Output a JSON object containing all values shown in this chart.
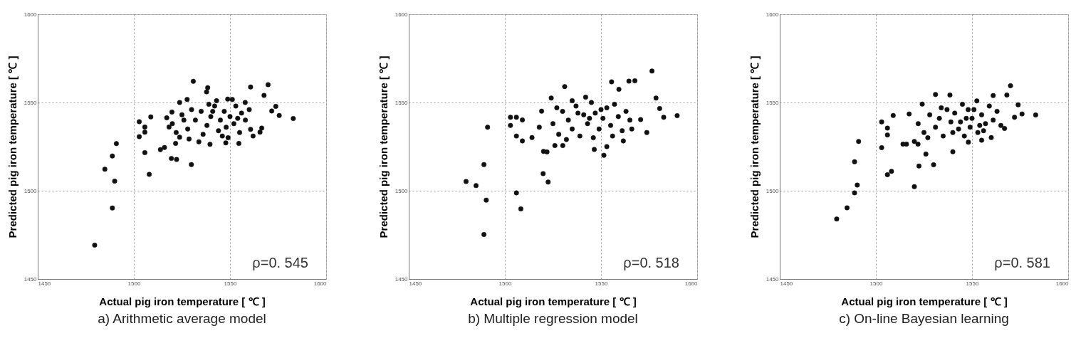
{
  "chart_data": [
    {
      "type": "scatter",
      "title": "a) Arithmetic average model",
      "xlabel": "Actual pig iron temperature [ ℃ ]",
      "ylabel": "Predicted pig iron temperature [ ℃ ]",
      "annotations": [
        "ρ=0. 545"
      ],
      "xlim": [
        1450,
        1600
      ],
      "ylim": [
        1450,
        1600
      ],
      "xticks": [
        1450,
        1500,
        1550,
        1600
      ],
      "yticks": [
        1450,
        1500,
        1550,
        1600
      ],
      "grid": true,
      "marker": "circle",
      "series": [
        {
          "color": "#111111",
          "x": [
            1479.6,
            1488.8,
            1490,
            1488.8,
            1484.9,
            1490.9,
            1502.8,
            1502.8,
            1505.7,
            1505.7,
            1505.7,
            1508,
            1508.8,
            1513.8,
            1515.9,
            1519.5,
            1522.2,
            1529.9,
            1530.9,
            1527.7,
            1523.8,
            1517.1,
            1519.8,
            1518.3,
            1521.7,
            1523.8,
            1528.7,
            1533.8,
            1538.4,
            1537.8,
            1539.6,
            1547.8,
            1554.6,
            1560.7,
            1569.8,
            1567.7,
            1573.8,
            1571.7,
            1575.6,
            1582.9,
            1565.6,
            1566.5,
            1560.7,
            1557.9,
            1548.8,
            1551.2,
            1520,
            1525,
            1528,
            1532,
            1535,
            1538,
            1540,
            1542,
            1544,
            1545,
            1547,
            1548,
            1550,
            1552,
            1553,
            1555,
            1556,
            1558,
            1560,
            1562,
            1546,
            1543,
            1536,
            1530,
            1526,
            1522,
            1541,
            1549,
            1554,
            1539
          ],
          "values": [
            1469.2,
            1490.2,
            1505.4,
            1519.7,
            1512.2,
            1526.7,
            1539.1,
            1530.6,
            1536.1,
            1533.2,
            1521.6,
            1509.3,
            1541.8,
            1523.3,
            1524.5,
            1518.3,
            1517.7,
            1514.8,
            1562,
            1551.7,
            1550,
            1541.3,
            1544.6,
            1536.1,
            1526.8,
            1530.3,
            1529.3,
            1527.7,
            1558.4,
            1556,
            1526.3,
            1527.1,
            1526.8,
            1558.8,
            1560.1,
            1554,
            1547.8,
            1545.2,
            1542.6,
            1540.9,
            1533.2,
            1535.5,
            1534.8,
            1550,
            1551.9,
            1551.7,
            1538,
            1543,
            1535,
            1540,
            1545,
            1537,
            1542,
            1548,
            1534,
            1540,
            1545,
            1536,
            1542,
            1538,
            1548,
            1533,
            1544,
            1540,
            1546,
            1531,
            1531,
            1551,
            1532,
            1546,
            1540,
            1533,
            1545,
            1530,
            1541,
            1549
          ]
        }
      ]
    },
    {
      "type": "scatter",
      "title": "b) Multiple regression model",
      "xlabel": "Actual pig iron temperature [ ℃ ]",
      "ylabel": "Predicted pig iron temperature [ ℃ ]",
      "annotations": [
        "ρ=0. 518"
      ],
      "xlim": [
        1450,
        1600
      ],
      "ylim": [
        1450,
        1600
      ],
      "xticks": [
        1450,
        1500,
        1550,
        1600
      ],
      "yticks": [
        1450,
        1500,
        1550,
        1600
      ],
      "grid": true,
      "marker": "circle",
      "series": [
        {
          "color": "#111111",
          "x": [
            1489.1,
            1479.8,
            1485,
            1490.3,
            1489.1,
            1491,
            1506,
            1508.3,
            1519.9,
            1522.5,
            1502.9,
            1502.9,
            1506,
            1509.1,
            1506,
            1509.1,
            1514.1,
            1520.1,
            1521.9,
            1526,
            1530.1,
            1531.1,
            1524.1,
            1546.5,
            1551.5,
            1553,
            1555.5,
            1564.5,
            1567.6,
            1576.5,
            1578.6,
            1580.5,
            1582.6,
            1589.6,
            1559.3,
            1561.6,
            1573.8,
            1570.6,
            1519.1,
            1517.9,
            1525,
            1528,
            1530,
            1533,
            1535,
            1537,
            1539,
            1541,
            1543,
            1545,
            1547,
            1549,
            1551,
            1553,
            1555,
            1557,
            1559,
            1561,
            1563,
            1565,
            1546,
            1542,
            1538,
            1532,
            1527,
            1550,
            1556,
            1566,
            1535,
            1544
          ],
          "values": [
            1475.2,
            1505.2,
            1502.9,
            1494.7,
            1514.8,
            1536,
            1498.8,
            1489.7,
            1509.7,
            1504.9,
            1537,
            1541.6,
            1541.6,
            1540.1,
            1531,
            1528.2,
            1530.1,
            1522.3,
            1522,
            1525.6,
            1525.6,
            1559,
            1552.5,
            1523.4,
            1520.1,
            1525,
            1561.7,
            1562.1,
            1562.3,
            1567.8,
            1552.5,
            1546.6,
            1541.6,
            1542.5,
            1557.5,
            1528.2,
            1533,
            1540.3,
            1545.1,
            1536,
            1538,
            1532,
            1545,
            1540,
            1535,
            1548,
            1531,
            1543,
            1538,
            1550,
            1544,
            1535,
            1541,
            1547,
            1537,
            1549,
            1542,
            1534,
            1545,
            1540,
            1530,
            1553,
            1544,
            1529,
            1547,
            1546,
            1531,
            1535,
            1551,
            1541
          ]
        }
      ]
    },
    {
      "type": "scatter",
      "title": "c) On-line Bayesian learning",
      "xlabel": "Actual pig iron temperature [ ℃ ]",
      "ylabel": "Predicted pig iron temperature [ ℃ ]",
      "annotations": [
        "ρ=0. 581"
      ],
      "xlim": [
        1450,
        1600
      ],
      "ylim": [
        1450,
        1600
      ],
      "xticks": [
        1450,
        1500,
        1550,
        1600
      ],
      "yticks": [
        1450,
        1500,
        1550,
        1600
      ],
      "grid": true,
      "marker": "circle",
      "series": [
        {
          "color": "#111111",
          "x": [
            1479.6,
            1485,
            1488.9,
            1490.3,
            1488.9,
            1491,
            1503,
            1503,
            1506,
            1506,
            1506,
            1508.1,
            1509,
            1520,
            1522.4,
            1526,
            1530,
            1540,
            1514.1,
            1515.9,
            1520,
            1521.9,
            1517.3,
            1524.1,
            1531,
            1538.5,
            1570,
            1568.1,
            1574,
            1576,
            1583.1,
            1572.1,
            1566.9,
            1560,
            1555,
            1548.1,
            1561,
            1552.5,
            1522,
            1525,
            1528,
            1531,
            1533,
            1535,
            1537,
            1539,
            1541,
            1543,
            1545,
            1547,
            1549,
            1551,
            1553,
            1555,
            1557,
            1559,
            1561,
            1563,
            1546,
            1544,
            1540,
            1534,
            1527,
            1554,
            1550,
            1548,
            1565,
            1556
          ],
          "values": [
            1484,
            1490.3,
            1498.8,
            1503.2,
            1516.4,
            1527.9,
            1524.4,
            1539,
            1535.5,
            1531.6,
            1509.1,
            1511,
            1542.6,
            1502.3,
            1514,
            1520.8,
            1514.7,
            1522.1,
            1526.4,
            1526.4,
            1527.9,
            1526.4,
            1543.5,
            1549.1,
            1554.5,
            1554.2,
            1559.5,
            1554.2,
            1548.7,
            1543.5,
            1542.9,
            1541.6,
            1535.3,
            1530.1,
            1528.6,
            1527.5,
            1553.9,
            1550.9,
            1538,
            1533,
            1543,
            1536,
            1541,
            1531,
            1546,
            1539,
            1544,
            1535,
            1549,
            1541,
            1536,
            1546,
            1533,
            1543,
            1538,
            1548,
            1540,
            1545,
            1531,
            1539,
            1533,
            1547,
            1530,
            1537,
            1541,
            1546,
            1537,
            1534
          ]
        }
      ]
    }
  ]
}
